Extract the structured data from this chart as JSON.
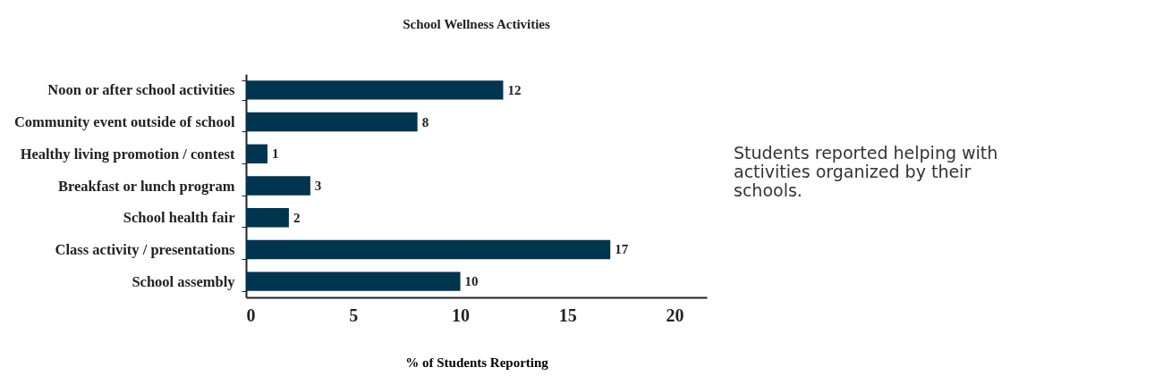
{
  "chart_data": {
    "type": "bar",
    "orientation": "horizontal",
    "title": "School Wellness Activities",
    "xlabel": "% of Students Reporting",
    "categories": [
      "Noon or after school activities",
      "Community event outside of school",
      "Healthy living promotion / contest",
      "Breakfast or lunch program",
      "School health fair",
      "Class activity / presentations",
      "School assembly"
    ],
    "values": [
      12,
      8,
      1,
      3,
      2,
      17,
      10
    ],
    "color": "#00344f",
    "data_labels": true,
    "xlim": [
      0,
      21.5
    ],
    "xticks": [
      0,
      5,
      10,
      15,
      20
    ],
    "grid": false,
    "annotations": [
      "Students reported helping with activities organized by their schools."
    ]
  }
}
